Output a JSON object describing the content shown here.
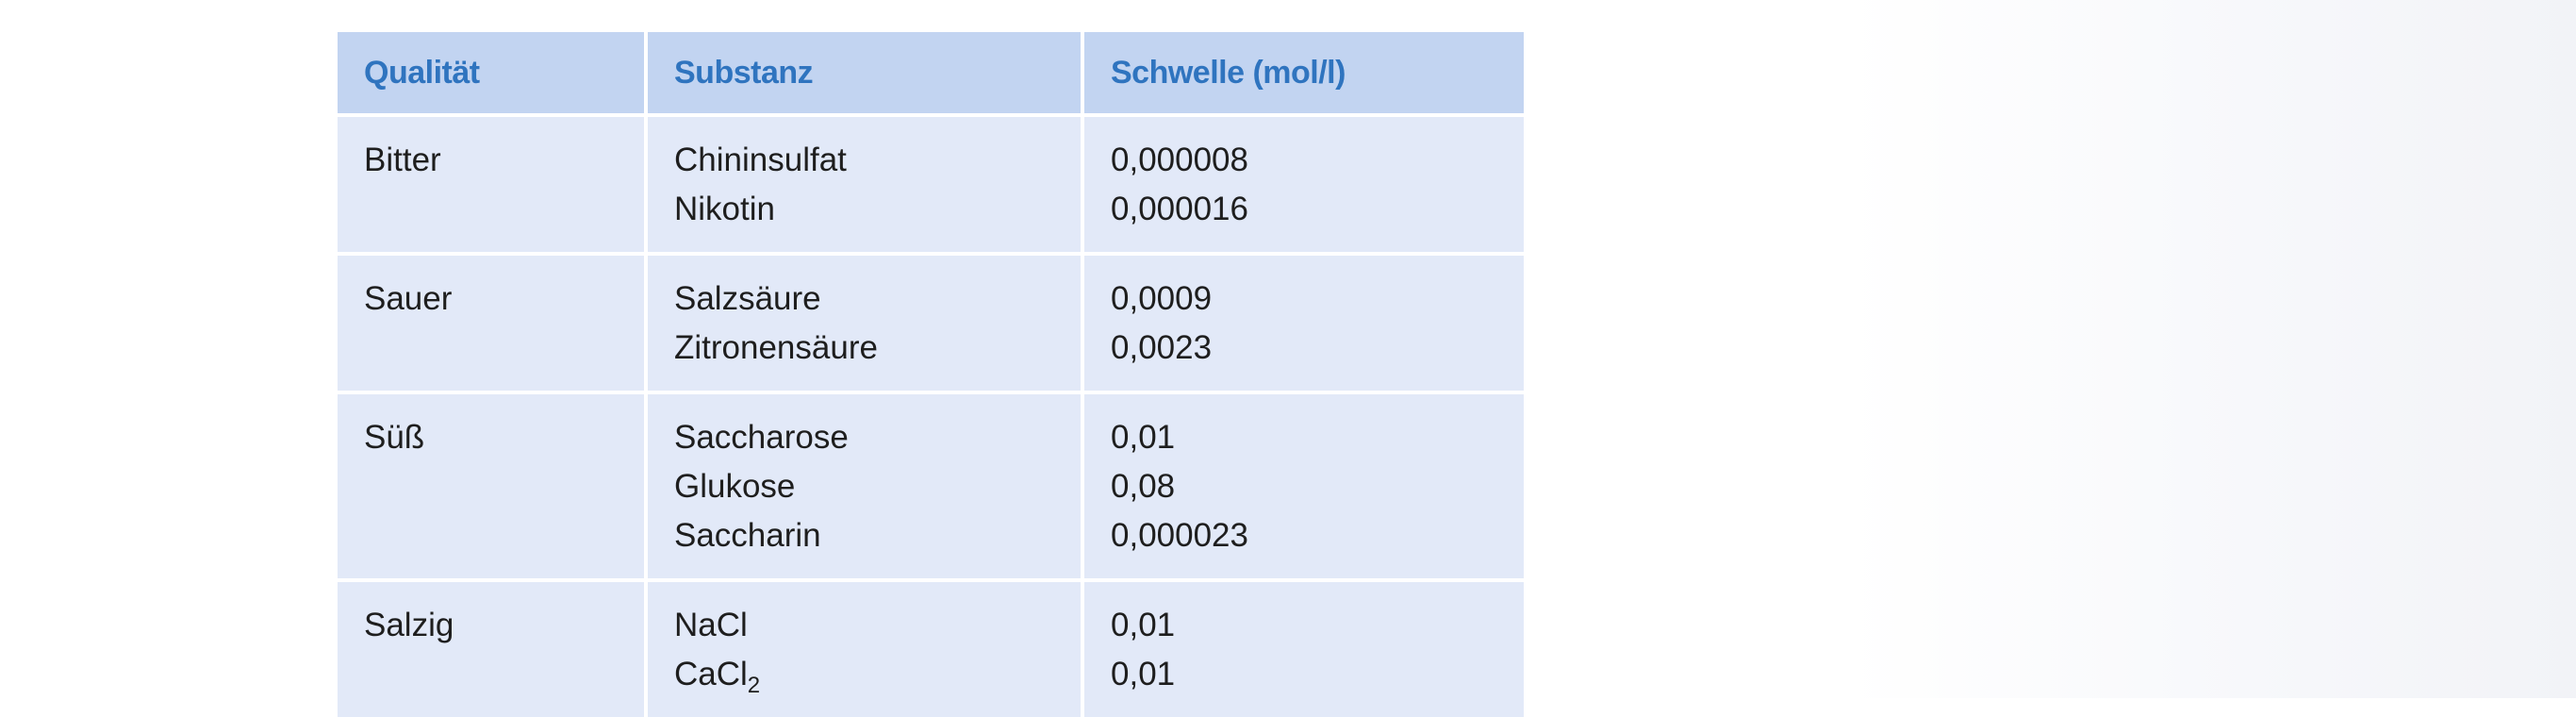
{
  "table": {
    "headers": [
      "Qualität",
      "Substanz",
      "Schwelle (mol/l)"
    ],
    "rows": [
      {
        "quality": "Bitter",
        "items": [
          {
            "substance": "Chininsulfat",
            "subscript": "",
            "threshold": "0,000008"
          },
          {
            "substance": "Nikotin",
            "subscript": "",
            "threshold": "0,000016"
          }
        ]
      },
      {
        "quality": "Sauer",
        "items": [
          {
            "substance": "Salzsäure",
            "subscript": "",
            "threshold": "0,0009"
          },
          {
            "substance": "Zitronensäure",
            "subscript": "",
            "threshold": "0,0023"
          }
        ]
      },
      {
        "quality": "Süß",
        "items": [
          {
            "substance": "Saccharose",
            "subscript": "",
            "threshold": "0,01"
          },
          {
            "substance": "Glukose",
            "subscript": "",
            "threshold": "0,08"
          },
          {
            "substance": "Saccharin",
            "subscript": "",
            "threshold": "0,000023"
          }
        ]
      },
      {
        "quality": "Salzig",
        "items": [
          {
            "substance": "NaCl",
            "subscript": "",
            "threshold": "0,01"
          },
          {
            "substance": "CaCl",
            "subscript": "2",
            "threshold": "0,01"
          }
        ]
      }
    ]
  }
}
